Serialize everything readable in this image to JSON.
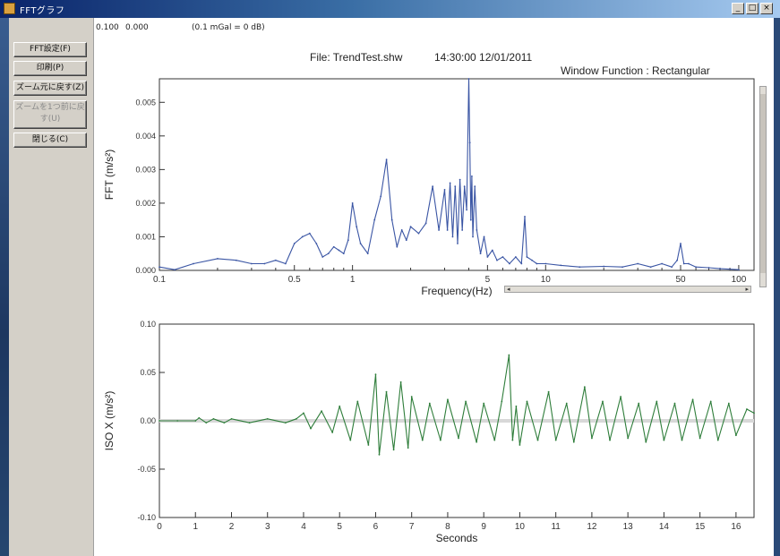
{
  "window": {
    "title": "FFTグラフ",
    "controls": {
      "minimize": "_",
      "maximize": "□",
      "close": "×"
    }
  },
  "sidebar": {
    "buttons": [
      {
        "label": "FFT設定(F)",
        "enabled": true
      },
      {
        "label": "印刷(P)",
        "enabled": true
      },
      {
        "label": "ズーム元に戻す(Z)",
        "enabled": true
      },
      {
        "label": "ズームを1つ前に戻す(U)",
        "enabled": false
      },
      {
        "label": "閉じる(C)",
        "enabled": true
      }
    ]
  },
  "info_bar": {
    "value1": "0.100",
    "value2": "0.000",
    "ref": "(0.1 mGal = 0 dB)"
  },
  "header": {
    "file": "File: TrendTest.shw",
    "datetime": "14:30:00 12/01/2011",
    "window_function": "Window Function : Rectangular"
  },
  "chart_data": [
    {
      "type": "line",
      "xscale": "log",
      "xlabel": "Frequency(Hz)",
      "ylabel": "FFT (m/s²)",
      "xlim": [
        0.1,
        120
      ],
      "ylim": [
        0,
        0.0057
      ],
      "xticks": [
        0.1,
        0.5,
        1,
        5,
        10,
        50,
        100
      ],
      "xtick_labels": [
        "0.1",
        "0.5",
        "1",
        "5",
        "10",
        "50",
        "100"
      ],
      "yticks": [
        0,
        0.001,
        0.002,
        0.003,
        0.004,
        0.005
      ],
      "ytick_labels": [
        "0.000",
        "0.001",
        "0.002",
        "0.003",
        "0.004",
        "0.005"
      ],
      "grid": false,
      "color": "#3a55a4",
      "series": [
        {
          "x": [
            0.1,
            0.12,
            0.15,
            0.2,
            0.25,
            0.3,
            0.35,
            0.4,
            0.45,
            0.5,
            0.55,
            0.6,
            0.65,
            0.7,
            0.75,
            0.8,
            0.85,
            0.9,
            0.95,
            1.0,
            1.05,
            1.1,
            1.2,
            1.3,
            1.4,
            1.5,
            1.6,
            1.7,
            1.8,
            1.9,
            2.0,
            2.2,
            2.4,
            2.6,
            2.8,
            3.0,
            3.1,
            3.2,
            3.3,
            3.4,
            3.5,
            3.6,
            3.7,
            3.8,
            3.9,
            4.0,
            4.05,
            4.1,
            4.15,
            4.2,
            4.3,
            4.4,
            4.6,
            4.8,
            5.0,
            5.3,
            5.6,
            6.0,
            6.5,
            7.0,
            7.5,
            7.8,
            8.0,
            8.5,
            9.0,
            10,
            12,
            15,
            20,
            25,
            30,
            35,
            40,
            45,
            48,
            50,
            52,
            55,
            60,
            70,
            80,
            100
          ],
          "y": [
            0.0001,
            2e-05,
            0.0002,
            0.00035,
            0.0003,
            0.0002,
            0.0002,
            0.0003,
            0.0002,
            0.0008,
            0.001,
            0.0011,
            0.0008,
            0.0004,
            0.0005,
            0.0007,
            0.0006,
            0.0005,
            0.0009,
            0.002,
            0.0013,
            0.0008,
            0.0005,
            0.0015,
            0.0022,
            0.0033,
            0.0015,
            0.0007,
            0.0012,
            0.0009,
            0.0013,
            0.0011,
            0.0014,
            0.0025,
            0.0012,
            0.0024,
            0.0012,
            0.0026,
            0.001,
            0.0025,
            0.0008,
            0.0027,
            0.0012,
            0.0025,
            0.0018,
            0.0057,
            0.0038,
            0.0015,
            0.0028,
            0.001,
            0.0025,
            0.0012,
            0.0005,
            0.001,
            0.0004,
            0.0006,
            0.0003,
            0.0004,
            0.0002,
            0.0004,
            0.0002,
            0.0016,
            0.0004,
            0.0003,
            0.0002,
            0.0002,
            0.00015,
            0.0001,
            0.00012,
            0.0001,
            0.0002,
            0.0001,
            0.0002,
            0.0001,
            0.0003,
            0.0008,
            0.0002,
            0.0002,
            0.0001,
            8e-05,
            5e-05,
            2e-05
          ]
        }
      ]
    },
    {
      "type": "line",
      "xlabel": "Seconds",
      "ylabel": "ISO X (m/s²)",
      "xlim": [
        0,
        16.5
      ],
      "ylim": [
        -0.1,
        0.1
      ],
      "xticks": [
        0,
        1,
        2,
        3,
        4,
        5,
        6,
        7,
        8,
        9,
        10,
        11,
        12,
        13,
        14,
        15,
        16
      ],
      "xtick_labels": [
        "0",
        "1",
        "2",
        "3",
        "4",
        "5",
        "6",
        "7",
        "8",
        "9",
        "10",
        "11",
        "12",
        "13",
        "14",
        "15",
        "16"
      ],
      "yticks": [
        -0.1,
        -0.05,
        0,
        0.05,
        0.1
      ],
      "ytick_labels": [
        "-0.10",
        "-0.05",
        "0.00",
        "0.05",
        "0.10"
      ],
      "grid": false,
      "color": "#2e7d3a",
      "series": [
        {
          "x": [
            0,
            0.5,
            1.0,
            1.1,
            1.3,
            1.5,
            1.8,
            2.0,
            2.5,
            3.0,
            3.5,
            3.8,
            4.0,
            4.2,
            4.5,
            4.8,
            5.0,
            5.3,
            5.5,
            5.8,
            6.0,
            6.1,
            6.3,
            6.5,
            6.7,
            6.9,
            7.0,
            7.3,
            7.5,
            7.8,
            8.0,
            8.3,
            8.5,
            8.8,
            9.0,
            9.3,
            9.5,
            9.7,
            9.8,
            9.9,
            10.0,
            10.2,
            10.5,
            10.8,
            11.0,
            11.3,
            11.5,
            11.8,
            12.0,
            12.3,
            12.5,
            12.8,
            13.0,
            13.3,
            13.5,
            13.8,
            14.0,
            14.3,
            14.5,
            14.8,
            15.0,
            15.3,
            15.5,
            15.8,
            16.0,
            16.3,
            16.5
          ],
          "y": [
            0,
            0,
            0,
            0.003,
            -0.002,
            0.002,
            -0.002,
            0.002,
            -0.002,
            0.002,
            -0.002,
            0.002,
            0.008,
            -0.008,
            0.01,
            -0.012,
            0.015,
            -0.02,
            0.02,
            -0.025,
            0.048,
            -0.035,
            0.03,
            -0.03,
            0.04,
            -0.028,
            0.025,
            -0.02,
            0.018,
            -0.02,
            0.022,
            -0.018,
            0.02,
            -0.022,
            0.018,
            -0.02,
            0.02,
            0.068,
            -0.02,
            0.015,
            -0.025,
            0.02,
            -0.02,
            0.03,
            -0.02,
            0.018,
            -0.022,
            0.035,
            -0.018,
            0.02,
            -0.02,
            0.025,
            -0.018,
            0.018,
            -0.022,
            0.02,
            -0.02,
            0.018,
            -0.02,
            0.022,
            -0.018,
            0.02,
            -0.02,
            0.018,
            -0.015,
            0.012,
            0.008
          ]
        }
      ]
    }
  ]
}
